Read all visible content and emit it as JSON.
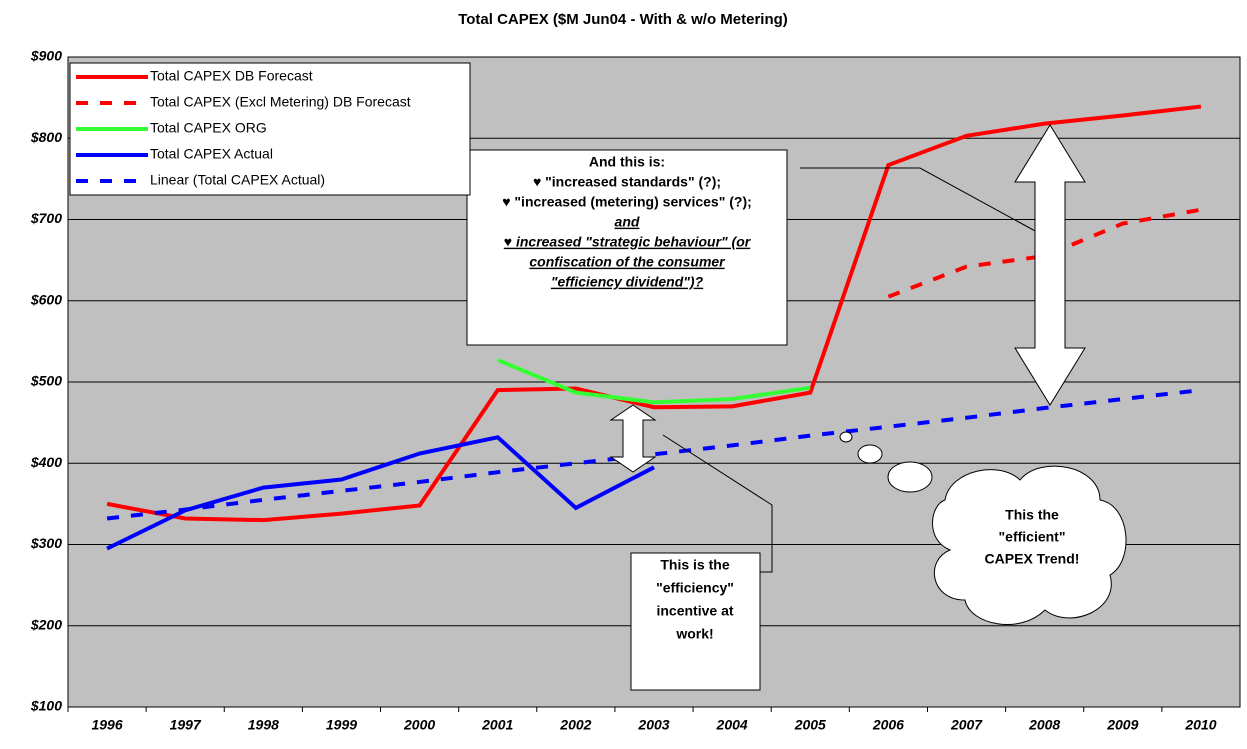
{
  "chart_data": {
    "type": "line",
    "title": "Total CAPEX ($M Jun04 - With & w/o Metering)",
    "categories": [
      "1996",
      "1997",
      "1998",
      "1999",
      "2000",
      "2001",
      "2002",
      "2003",
      "2004",
      "2005",
      "2006",
      "2007",
      "2008",
      "2009",
      "2010"
    ],
    "ylim": [
      100,
      900
    ],
    "yticks": [
      {
        "value": 100,
        "label": "$100"
      },
      {
        "value": 200,
        "label": "$200"
      },
      {
        "value": 300,
        "label": "$300"
      },
      {
        "value": 400,
        "label": "$400"
      },
      {
        "value": 500,
        "label": "$500"
      },
      {
        "value": 600,
        "label": "$600"
      },
      {
        "value": 700,
        "label": "$700"
      },
      {
        "value": 800,
        "label": "$800"
      },
      {
        "value": 900,
        "label": "$900"
      }
    ],
    "grid": true,
    "series": [
      {
        "name": "Total CAPEX DB Forecast",
        "color": "#ff0000",
        "dashed": false,
        "values": [
          350,
          332,
          330,
          338,
          348,
          490,
          492,
          469,
          470,
          487,
          767,
          803,
          818,
          828,
          839
        ]
      },
      {
        "name": "Total CAPEX (Excl Metering) DB Forecast",
        "color": "#ff0000",
        "dashed": true,
        "values": [
          null,
          null,
          null,
          null,
          null,
          null,
          null,
          null,
          null,
          null,
          605,
          642,
          655,
          695,
          712
        ]
      },
      {
        "name": "Total CAPEX ORG",
        "color": "#33ff33",
        "dashed": false,
        "values": [
          null,
          null,
          null,
          null,
          null,
          527,
          487,
          475,
          479,
          493,
          null,
          null,
          null,
          null,
          null
        ]
      },
      {
        "name": "Total CAPEX Actual",
        "color": "#0000ff",
        "dashed": false,
        "values": [
          295,
          342,
          370,
          380,
          412,
          432,
          345,
          395,
          null,
          null,
          null,
          null,
          null,
          null,
          null
        ]
      },
      {
        "name": "Linear (Total CAPEX Actual)",
        "color": "#0000ff",
        "dashed": true,
        "values": [
          332,
          343,
          355,
          366,
          377,
          389,
          400,
          411,
          422,
          434,
          445,
          456,
          468,
          479,
          490
        ]
      }
    ],
    "annotations": [
      {
        "lines": [
          "And this is:",
          "♥ \"increased standards\" (?);",
          "♥ \"increased (metering) services\" (?);",
          "and",
          "♥ increased \"strategic behaviour\" (or",
          "confiscation of the consumer",
          "\"efficiency dividend\")?"
        ]
      },
      {
        "lines": [
          "This is the",
          "\"efficiency\"",
          "incentive at",
          "work!"
        ]
      },
      {
        "lines": [
          "This the",
          "\"efficient\"",
          "CAPEX Trend!"
        ]
      }
    ]
  }
}
